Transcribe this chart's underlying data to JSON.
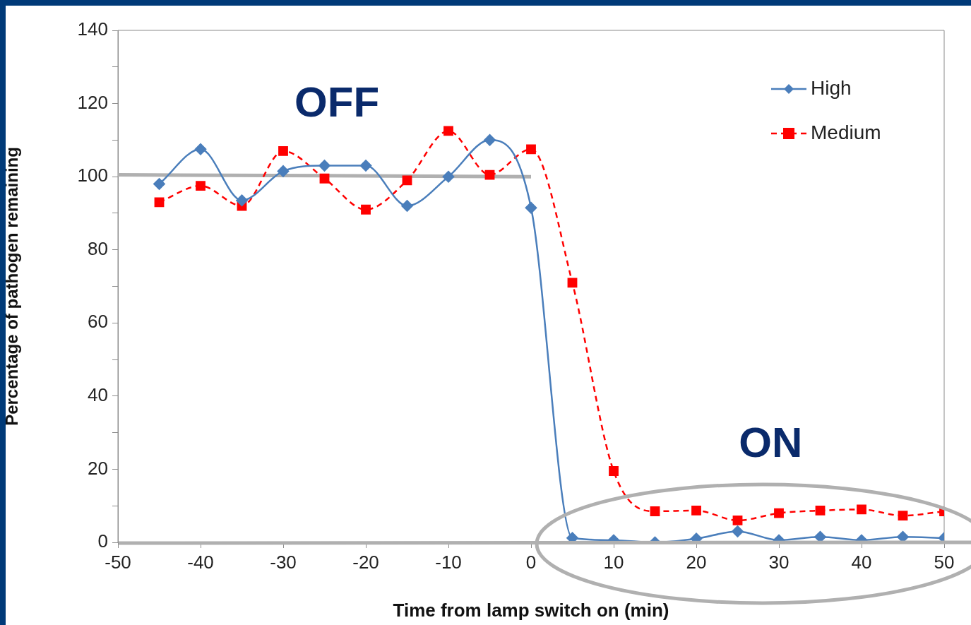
{
  "chart_data": {
    "type": "line",
    "xlabel": "Time from lamp switch on (min)",
    "ylabel": "Percentage of pathogen remaining",
    "x": [
      -45,
      -40,
      -35,
      -30,
      -25,
      -20,
      -15,
      -10,
      -5,
      0,
      5,
      10,
      15,
      20,
      25,
      30,
      35,
      40,
      45,
      50
    ],
    "series": [
      {
        "name": "High",
        "color": "#4a7ebb",
        "marker": "diamond",
        "line_style": "solid",
        "values": [
          98,
          107.5,
          93.5,
          101.5,
          103,
          103,
          92,
          100,
          110,
          91.5,
          1.2,
          0.6,
          0,
          1,
          3,
          0.6,
          1.5,
          0.6,
          1.5,
          1.2
        ]
      },
      {
        "name": "Medium",
        "color": "#ff0000",
        "marker": "square",
        "line_style": "dashed",
        "values": [
          93,
          97.5,
          92,
          107,
          99.5,
          91,
          99,
          112.5,
          100.5,
          107.5,
          71,
          19.5,
          8.5,
          8.7,
          6,
          8,
          8.7,
          9,
          7.3,
          8.5
        ]
      },
      {
        "type": "line",
        "color": "#b0b0b0",
        "marker": "none",
        "line_style": "solid",
        "x": [
          -50,
          0
        ],
        "values": [
          100.5,
          100
        ]
      }
    ],
    "xlim": [
      -50,
      50
    ],
    "xticks": [
      -50,
      -40,
      -30,
      -20,
      -10,
      0,
      10,
      20,
      30,
      40,
      50
    ],
    "ylim": [
      0,
      140
    ],
    "yticks": [
      0,
      {
        "value": 10,
        "label": null
      },
      20,
      {
        "value": 30,
        "label": null
      },
      40,
      {
        "value": 50,
        "label": null
      },
      60,
      {
        "value": 70,
        "label": null
      },
      80,
      {
        "value": 90,
        "label": null
      },
      100,
      {
        "value": 110,
        "label": null
      },
      120,
      {
        "value": 130,
        "label": null
      },
      140
    ],
    "grid": false,
    "legend": "top right",
    "annotations": [
      "OFF",
      "ON"
    ]
  }
}
